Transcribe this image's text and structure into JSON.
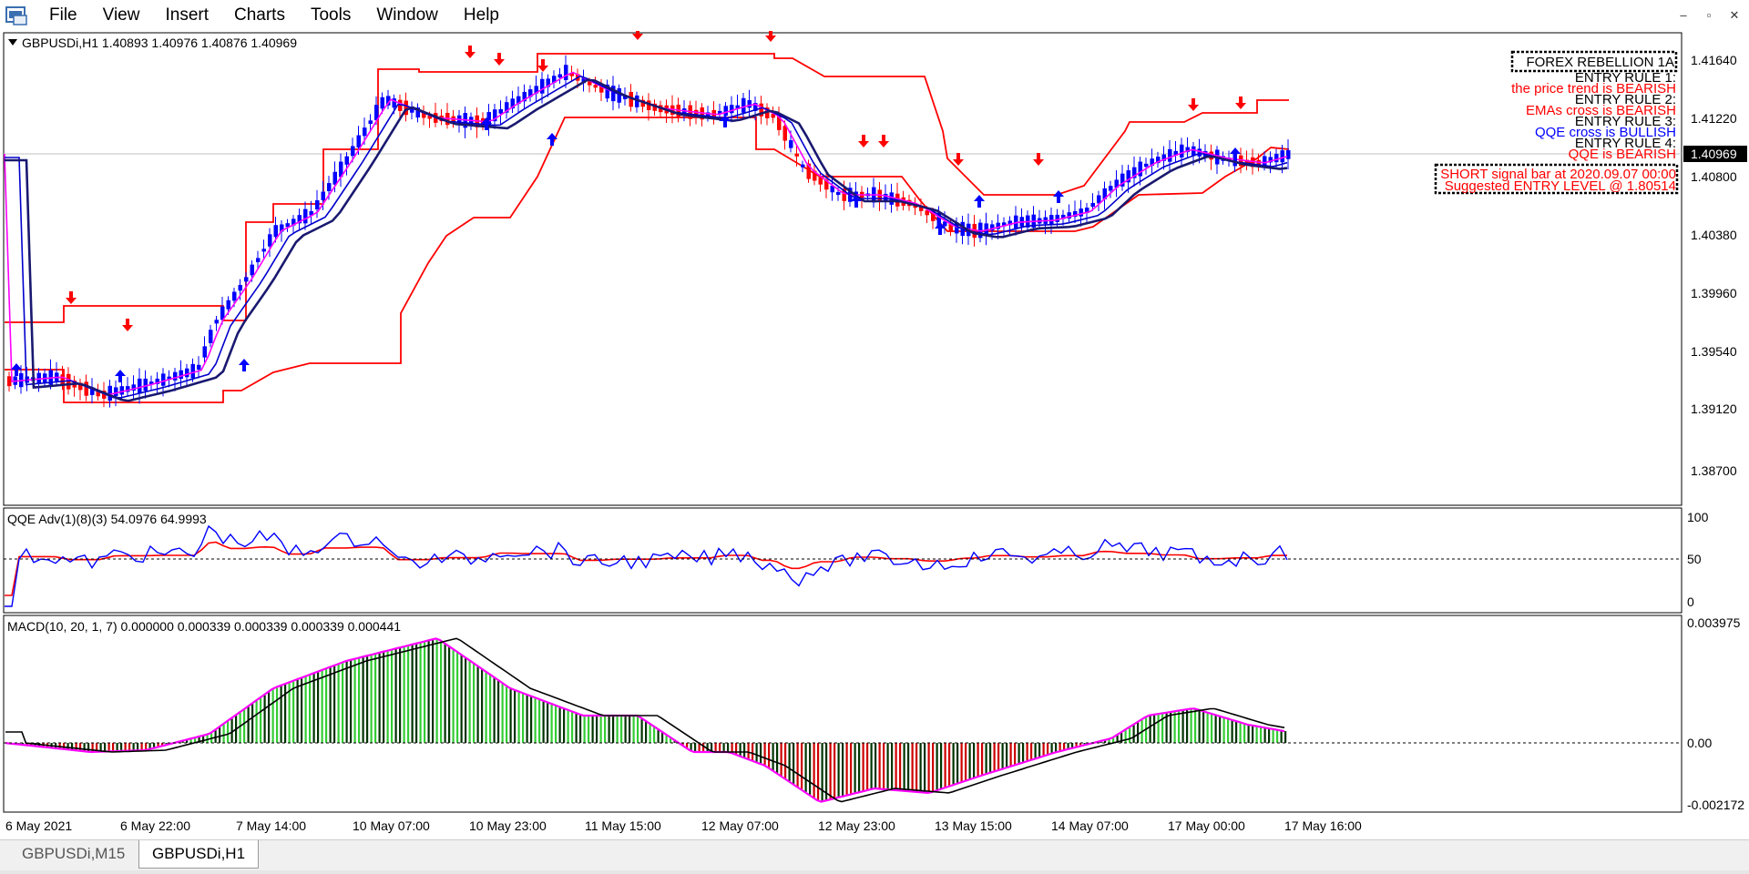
{
  "menu": {
    "items": [
      "File",
      "View",
      "Insert",
      "Charts",
      "Tools",
      "Window",
      "Help"
    ]
  },
  "window_controls": {
    "minimize": "–",
    "restore": "▫",
    "close": "✕"
  },
  "main_chart": {
    "header": "GBPUSDi,H1  1.40893 1.40976 1.40876 1.40969",
    "current_price": "1.40969",
    "price_ticks": [
      "1.41640",
      "1.41220",
      "1.40800",
      "1.40380",
      "1.39960",
      "1.39540",
      "1.39120",
      "1.38700"
    ]
  },
  "info_panel": {
    "title": "FOREX REBELLION 1A",
    "lines": [
      {
        "text": "ENTRY RULE 1:",
        "color": "#000000"
      },
      {
        "text": "the price trend is BEARISH",
        "color": "#ff0000"
      },
      {
        "text": "ENTRY RULE 2:",
        "color": "#000000"
      },
      {
        "text": "EMAs cross is BEARISH",
        "color": "#ff0000"
      },
      {
        "text": "ENTRY RULE 3:",
        "color": "#000000"
      },
      {
        "text": "QQE cross is BULLISH",
        "color": "#0000ff"
      },
      {
        "text": "ENTRY RULE 4:",
        "color": "#000000"
      },
      {
        "text": "QQE is BEARISH",
        "color": "#ff0000"
      }
    ],
    "signal_lines": [
      "SHORT signal bar at 2020.09.07 00:00",
      "Suggested ENTRY LEVEL @ 1.80514"
    ]
  },
  "qqe_panel": {
    "header": "QQE Adv(1)(8)(3) 54.0976 64.9993",
    "ticks": [
      "100",
      "50",
      "0"
    ]
  },
  "macd_panel": {
    "header": "MACD(10, 20, 1, 7) 0.000000 0.000339 0.000339 0.000339 0.000441",
    "ticks": [
      "0.003975",
      "0.00",
      "-0.002172"
    ]
  },
  "time_axis": [
    "6 May 2021",
    "6 May 22:00",
    "7 May 14:00",
    "10 May 07:00",
    "10 May 23:00",
    "11 May 15:00",
    "12 May 07:00",
    "12 May 23:00",
    "13 May 15:00",
    "14 May 07:00",
    "17 May 00:00",
    "17 May 16:00"
  ],
  "tabs": [
    {
      "label": "GBPUSDi,M15",
      "active": false
    },
    {
      "label": "GBPUSDi,H1",
      "active": true
    }
  ],
  "colors": {
    "bull_candle": "#0000ff",
    "bear_candle": "#ff0000",
    "channel": "#ff0000",
    "ema_fast": "#ff00ff",
    "ema_mid": "#0000cd",
    "ema_slow": "#191970",
    "macd_up": "#33cc33",
    "macd_down": "#cc0000",
    "macd_dark": "#003300"
  }
}
